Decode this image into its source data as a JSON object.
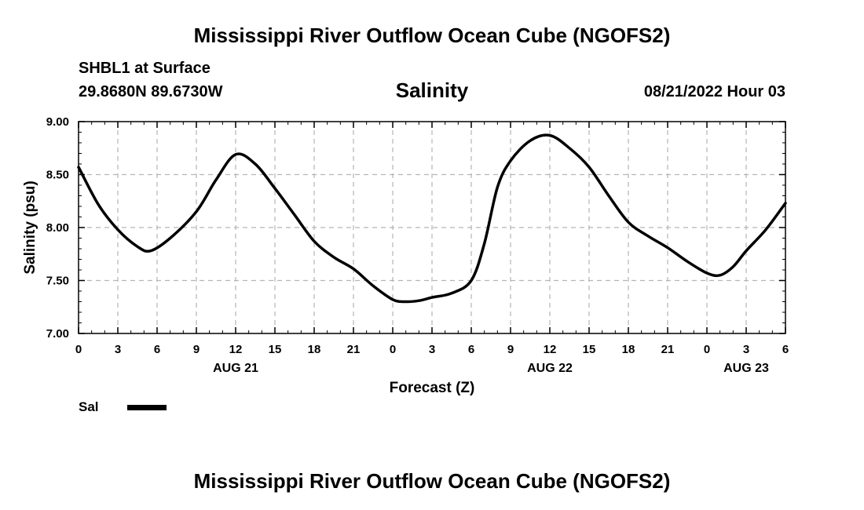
{
  "header": {
    "title": "Mississippi River Outflow Ocean Cube (NGOFS2)",
    "station": "SHBL1 at Surface",
    "coords": "29.8680N  89.6730W",
    "variable": "Salinity",
    "datetime": "08/21/2022 Hour 03"
  },
  "footer": {
    "title": "Mississippi River Outflow Ocean Cube (NGOFS2)"
  },
  "legend": {
    "label": "Sal"
  },
  "chart_data": {
    "type": "line",
    "title": "Salinity",
    "xlabel": "Forecast (Z)",
    "ylabel": "Salinity (psu)",
    "xlim": [
      0,
      54
    ],
    "ylim": [
      7.0,
      9.0
    ],
    "grid": true,
    "x_tick_values": [
      0,
      3,
      6,
      9,
      12,
      15,
      18,
      21,
      24,
      27,
      30,
      33,
      36,
      39,
      42,
      45,
      48,
      51,
      54
    ],
    "x_tick_labels": [
      "0",
      "3",
      "6",
      "9",
      "12",
      "15",
      "18",
      "21",
      "0",
      "3",
      "6",
      "9",
      "12",
      "15",
      "18",
      "21",
      "0",
      "3",
      "6"
    ],
    "date_labels": [
      {
        "x": 12,
        "label": "AUG 21"
      },
      {
        "x": 36,
        "label": "AUG 22"
      },
      {
        "x": 51,
        "label": "AUG 23"
      }
    ],
    "y_ticks": [
      7.0,
      7.5,
      8.0,
      8.5,
      9.0
    ],
    "y_tick_labels": [
      "7.00",
      "7.50",
      "8.00",
      "8.50",
      "9.00"
    ],
    "series": [
      {
        "name": "Sal",
        "x": [
          0,
          1.5,
          3,
          4.5,
          5.5,
          7,
          9,
          10.5,
          12,
          13.5,
          15,
          16.5,
          18,
          19.5,
          21,
          22.5,
          24,
          25,
          26,
          27,
          28.5,
          30,
          31,
          32,
          33,
          34.5,
          36,
          37.5,
          39,
          40.5,
          42,
          43.5,
          45,
          46.5,
          48,
          49,
          50,
          51,
          52.5,
          54
        ],
        "values": [
          8.57,
          8.22,
          7.98,
          7.82,
          7.78,
          7.9,
          8.15,
          8.45,
          8.69,
          8.6,
          8.37,
          8.12,
          7.87,
          7.72,
          7.61,
          7.45,
          7.32,
          7.3,
          7.31,
          7.34,
          7.38,
          7.5,
          7.85,
          8.38,
          8.63,
          8.82,
          8.87,
          8.75,
          8.57,
          8.3,
          8.05,
          7.92,
          7.81,
          7.68,
          7.57,
          7.55,
          7.63,
          7.78,
          7.98,
          8.23
        ]
      }
    ]
  }
}
